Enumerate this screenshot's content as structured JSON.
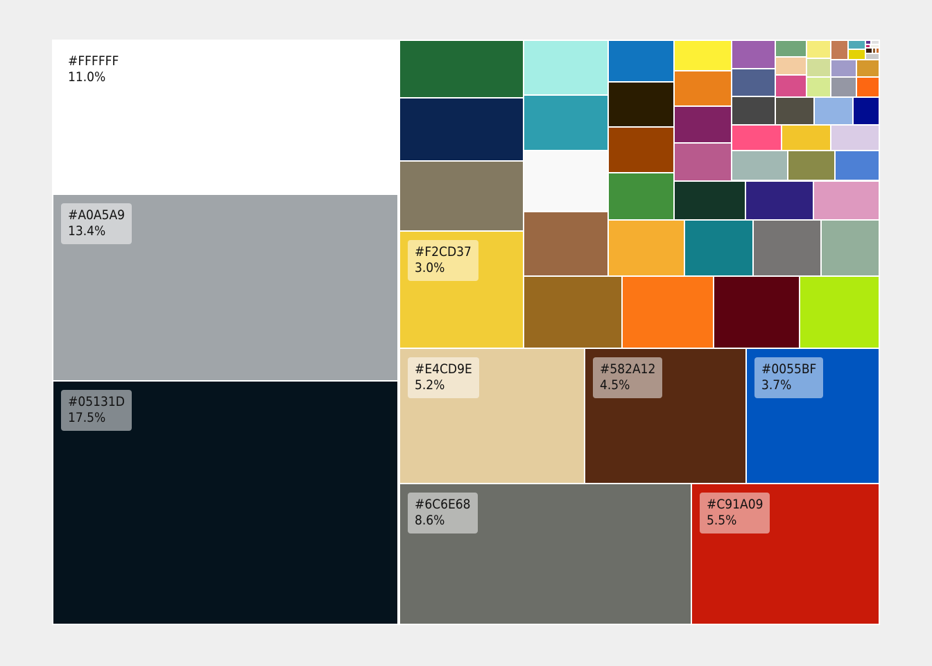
{
  "chart_data": {
    "type": "treemap",
    "tiles": [
      {
        "hex": "#FFFFFF",
        "label": "#FFFFFF",
        "percent_label": "11.0%",
        "value": 11.0
      },
      {
        "hex": "#A0A5A9",
        "label": "#A0A5A9",
        "percent_label": "13.4%",
        "value": 13.4
      },
      {
        "hex": "#05131D",
        "label": "#05131D",
        "percent_label": "17.5%",
        "value": 17.5
      },
      {
        "hex": "#F2CD37",
        "label": "#F2CD37",
        "percent_label": "3.0%",
        "value": 3.0
      },
      {
        "hex": "#E4CD9E",
        "label": "#E4CD9E",
        "percent_label": "5.2%",
        "value": 5.2
      },
      {
        "hex": "#582A12",
        "label": "#582A12",
        "percent_label": "4.5%",
        "value": 4.5
      },
      {
        "hex": "#0055BF",
        "label": "#0055BF",
        "percent_label": "3.7%",
        "value": 3.7
      },
      {
        "hex": "#6C6E68",
        "label": "#6C6E68",
        "percent_label": "8.6%",
        "value": 8.6
      },
      {
        "hex": "#C91A09",
        "label": "#C91A09",
        "percent_label": "5.5%",
        "value": 5.5
      },
      {
        "hex": "#216A36",
        "value": 1.5
      },
      {
        "hex": "#0B2552",
        "value": 1.6
      },
      {
        "hex": "#837961",
        "value": 1.7
      },
      {
        "hex": "#A4EEE5",
        "value": 1.0
      },
      {
        "hex": "#2E9EAF",
        "value": 1.0
      },
      {
        "hex": "#F9F9F9",
        "value": 1.1
      },
      {
        "hex": "#9A6843",
        "value": 1.1
      },
      {
        "hex": "#98691F",
        "value": 1.2
      },
      {
        "hex": "#FC7615",
        "value": 1.1
      },
      {
        "hex": "#5C0210",
        "value": 1.0
      },
      {
        "hex": "#B0EA0F",
        "value": 0.95
      },
      {
        "hex": "#1175BF",
        "value": 0.45
      },
      {
        "hex": "#2A1C00",
        "value": 0.5
      },
      {
        "hex": "#984100",
        "value": 0.5
      },
      {
        "hex": "#42913C",
        "value": 0.48
      },
      {
        "hex": "#F5AE30",
        "value": 0.72
      },
      {
        "hex": "#137F8A",
        "value": 0.65
      },
      {
        "hex": "#767473",
        "value": 0.6
      },
      {
        "hex": "#93AF9B",
        "value": 0.5
      },
      {
        "hex": "#FDF036",
        "value": 0.27
      },
      {
        "hex": "#EA801B",
        "value": 0.3
      },
      {
        "hex": "#802263",
        "value": 0.3
      },
      {
        "hex": "#B85A8D",
        "value": 0.3
      },
      {
        "hex": "#9C5FAD",
        "value": 0.13
      },
      {
        "hex": "#50618E",
        "value": 0.13
      },
      {
        "hex": "#474747",
        "value": 0.13
      },
      {
        "hex": "#71A67A",
        "value": 0.06
      },
      {
        "hex": "#F3CCA1",
        "value": 0.06
      },
      {
        "hex": "#D74E8A",
        "value": 0.07
      },
      {
        "hex": "#524F44",
        "value": 0.12
      },
      {
        "hex": "#F5EC7A",
        "value": 0.05
      },
      {
        "hex": "#D2DE99",
        "value": 0.05
      },
      {
        "hex": "#D6EA91",
        "value": 0.06
      },
      {
        "hex": "#C37A54",
        "value": 0.03
      },
      {
        "hex": "#A09BC9",
        "value": 0.04
      },
      {
        "hex": "#D5982D",
        "value": 0.04
      },
      {
        "hex": "#9597A4",
        "value": 0.04
      },
      {
        "hex": "#FD6712",
        "value": 0.04
      },
      {
        "hex": "#91B3E4",
        "value": 0.08
      },
      {
        "hex": "#000C91",
        "value": 0.05
      },
      {
        "hex": "#4FA9B7",
        "value": 0.015
      },
      {
        "hex": "#E4D205",
        "value": 0.02
      },
      {
        "hex": "#CACACA",
        "value": 0.01
      },
      {
        "hex": "#FF5282",
        "value": 0.12
      },
      {
        "hex": "#F2C52B",
        "value": 0.12
      },
      {
        "hex": "#DACCE6",
        "value": 0.12
      },
      {
        "hex": "#A1B8B3",
        "value": 0.14
      },
      {
        "hex": "#898A48",
        "value": 0.12
      },
      {
        "hex": "#4D80D5",
        "value": 0.11
      },
      {
        "hex": "#143628",
        "value": 0.2
      },
      {
        "hex": "#2F217F",
        "value": 0.18
      },
      {
        "hex": "#DE99BF",
        "value": 0.17
      }
    ]
  }
}
